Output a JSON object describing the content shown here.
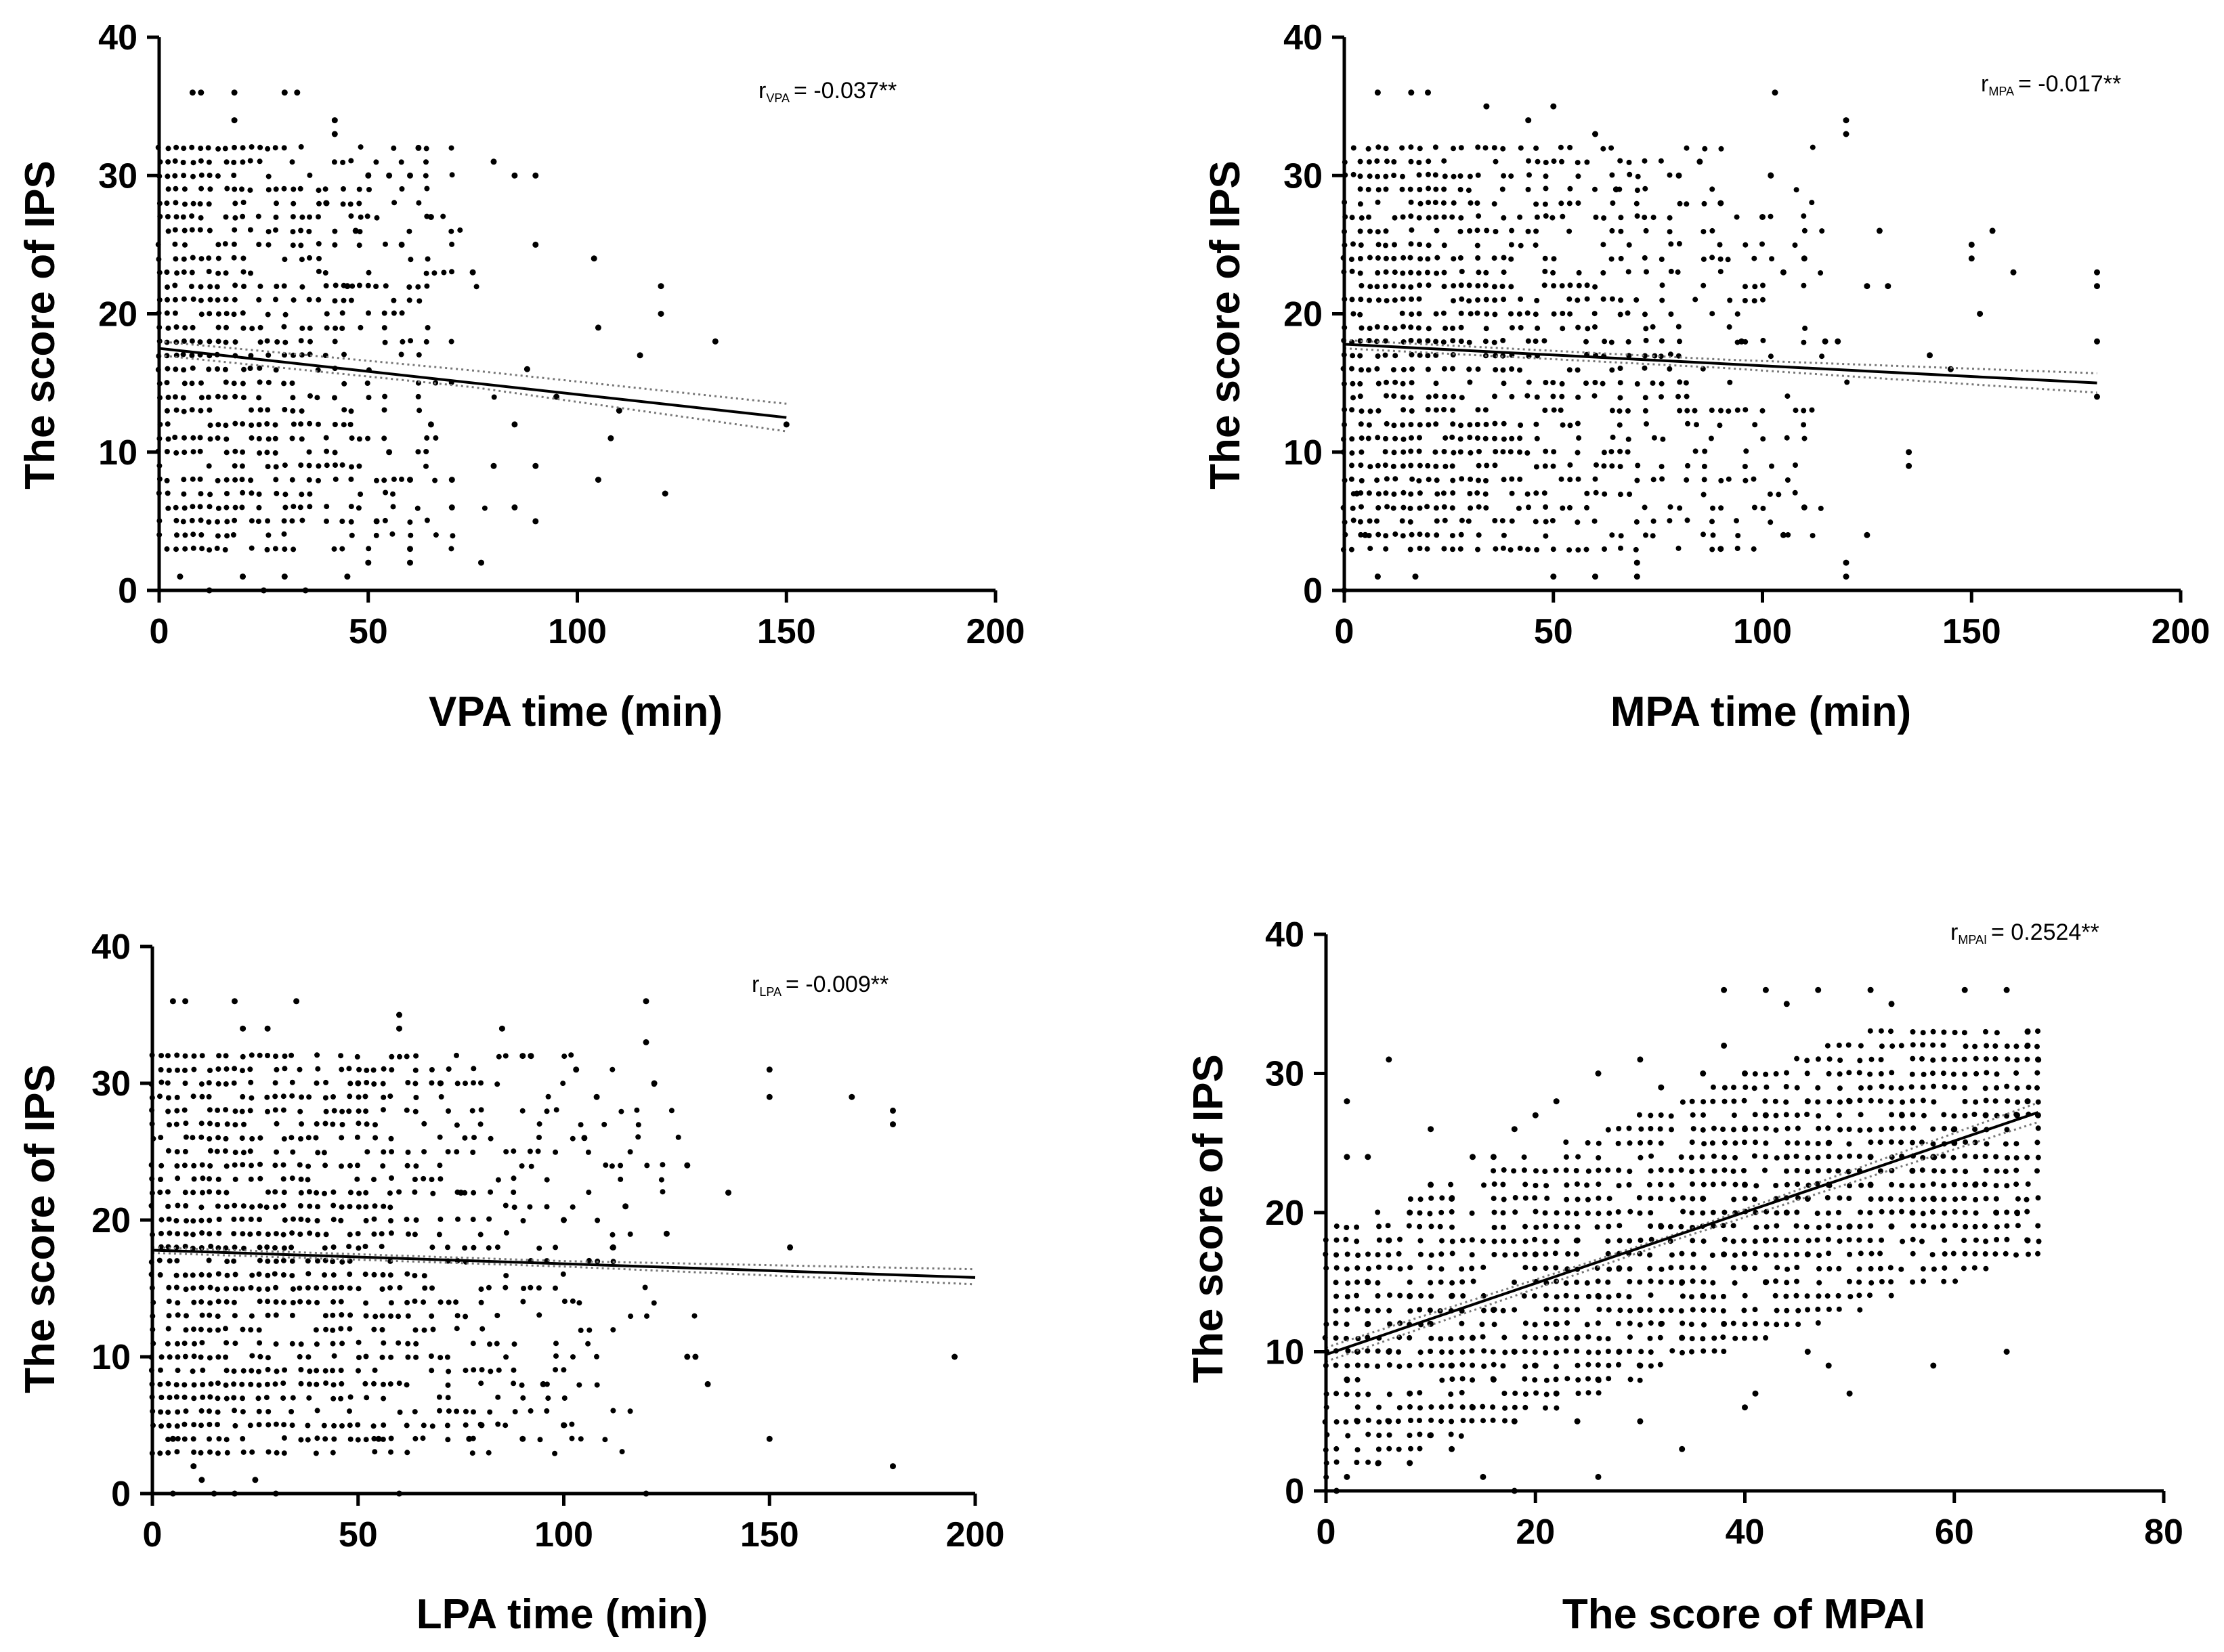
{
  "figure": {
    "colors": {
      "points": "#000000",
      "fit_line": "#000000",
      "ci_band": "#777777",
      "background": "#ffffff"
    }
  },
  "chart_data": [
    {
      "type": "scatter",
      "panel": "top-left",
      "xlabel": "VPA time (min)",
      "ylabel": "The score of IPS",
      "xlim": [
        0,
        200
      ],
      "ylim": [
        0,
        40
      ],
      "xticks": [
        "0",
        "50",
        "100",
        "150",
        "200"
      ],
      "yticks": [
        "0",
        "10",
        "20",
        "30",
        "40"
      ],
      "annotation": {
        "r_symbol": "r",
        "r_subscript": "VPA",
        "r_rest": "= -0.037**"
      },
      "fit_line": {
        "x": [
          0,
          150
        ],
        "y": [
          17.5,
          12.5
        ]
      },
      "ci_upper": {
        "x": [
          0,
          75,
          150
        ],
        "y": [
          18.0,
          15.9,
          13.5
        ]
      },
      "ci_lower": {
        "x": [
          0,
          75,
          150
        ],
        "y": [
          17.0,
          14.7,
          11.5
        ]
      },
      "points": [
        [
          8,
          36
        ],
        [
          10,
          36
        ],
        [
          18,
          36
        ],
        [
          18,
          34
        ],
        [
          30,
          36
        ],
        [
          33,
          36
        ],
        [
          42,
          34
        ],
        [
          42,
          33
        ],
        [
          62,
          32
        ],
        [
          75,
          23
        ],
        [
          80,
          31
        ],
        [
          85,
          30
        ],
        [
          90,
          30
        ],
        [
          90,
          25
        ],
        [
          104,
          24
        ],
        [
          105,
          19
        ],
        [
          105,
          8
        ],
        [
          108,
          11
        ],
        [
          110,
          13
        ],
        [
          115,
          17
        ],
        [
          120,
          22
        ],
        [
          120,
          20
        ],
        [
          121,
          7
        ],
        [
          133,
          18
        ],
        [
          150,
          12
        ],
        [
          5,
          1
        ],
        [
          12,
          0
        ],
        [
          20,
          1
        ],
        [
          25,
          0
        ],
        [
          30,
          1
        ],
        [
          35,
          0
        ],
        [
          45,
          1
        ],
        [
          50,
          2
        ],
        [
          52,
          5
        ],
        [
          60,
          2
        ],
        [
          60,
          3
        ],
        [
          77,
          2
        ],
        [
          85,
          6
        ],
        [
          90,
          5
        ],
        [
          60,
          8
        ],
        [
          55,
          10
        ],
        [
          65,
          12
        ],
        [
          70,
          8
        ],
        [
          70,
          6
        ],
        [
          80,
          9
        ],
        [
          85,
          12
        ],
        [
          88,
          16
        ],
        [
          90,
          9
        ],
        [
          95,
          14
        ],
        [
          58,
          25
        ],
        [
          65,
          27
        ],
        [
          40,
          28
        ],
        [
          45,
          22
        ],
        [
          50,
          30
        ],
        [
          55,
          30
        ],
        [
          47,
          26
        ],
        [
          60,
          30
        ]
      ]
    },
    {
      "type": "scatter",
      "panel": "top-right",
      "xlabel": "MPA time (min)",
      "ylabel": "The score of IPS",
      "xlim": [
        0,
        200
      ],
      "ylim": [
        0,
        40
      ],
      "xticks": [
        "0",
        "50",
        "100",
        "150",
        "200"
      ],
      "yticks": [
        "0",
        "10",
        "20",
        "30",
        "40"
      ],
      "annotation": {
        "r_symbol": "r",
        "r_subscript": "MPA",
        "r_rest": "= -0.017**"
      },
      "fit_line": {
        "x": [
          0,
          180
        ],
        "y": [
          17.8,
          15.0
        ]
      },
      "ci_upper": {
        "x": [
          0,
          90,
          180
        ],
        "y": [
          18.1,
          16.7,
          15.7
        ]
      },
      "ci_lower": {
        "x": [
          0,
          90,
          180
        ],
        "y": [
          17.5,
          16.1,
          14.3
        ]
      },
      "points": [
        [
          8,
          36
        ],
        [
          16,
          36
        ],
        [
          20,
          36
        ],
        [
          34,
          35
        ],
        [
          44,
          34
        ],
        [
          50,
          35
        ],
        [
          103,
          36
        ],
        [
          120,
          34
        ],
        [
          120,
          33
        ],
        [
          60,
          33
        ],
        [
          65,
          29
        ],
        [
          80,
          30
        ],
        [
          85,
          31
        ],
        [
          90,
          28
        ],
        [
          100,
          27
        ],
        [
          102,
          30
        ],
        [
          105,
          23
        ],
        [
          110,
          24
        ],
        [
          115,
          18
        ],
        [
          118,
          18
        ],
        [
          125,
          22
        ],
        [
          128,
          26
        ],
        [
          130,
          22
        ],
        [
          135,
          10
        ],
        [
          135,
          9
        ],
        [
          150,
          25
        ],
        [
          150,
          24
        ],
        [
          152,
          20
        ],
        [
          155,
          26
        ],
        [
          160,
          23
        ],
        [
          180,
          23
        ],
        [
          180,
          22
        ],
        [
          180,
          18
        ],
        [
          180,
          14
        ],
        [
          125,
          4
        ],
        [
          120,
          2
        ],
        [
          120,
          1
        ],
        [
          110,
          6
        ],
        [
          105,
          4
        ],
        [
          90,
          3
        ],
        [
          70,
          1
        ],
        [
          60,
          1
        ],
        [
          50,
          1
        ],
        [
          17,
          1
        ],
        [
          8,
          1
        ],
        [
          0,
          0
        ],
        [
          5,
          4
        ],
        [
          3,
          7
        ],
        [
          70,
          2
        ],
        [
          95,
          18
        ],
        [
          140,
          17
        ],
        [
          145,
          16
        ]
      ]
    },
    {
      "type": "scatter",
      "panel": "bottom-left",
      "xlabel": "LPA time (min)",
      "ylabel": "The score of IPS",
      "xlim": [
        0,
        200
      ],
      "ylim": [
        0,
        40
      ],
      "xticks": [
        "0",
        "50",
        "100",
        "150",
        "200"
      ],
      "yticks": [
        "0",
        "10",
        "20",
        "30",
        "40"
      ],
      "annotation": {
        "r_symbol": "r",
        "r_subscript": "LPA",
        "r_rest": "= -0.009**"
      },
      "fit_line": {
        "x": [
          0,
          200
        ],
        "y": [
          17.8,
          15.8
        ]
      },
      "ci_upper": {
        "x": [
          0,
          100,
          200
        ],
        "y": [
          18.0,
          17.0,
          16.4
        ]
      },
      "ci_lower": {
        "x": [
          0,
          100,
          200
        ],
        "y": [
          17.6,
          16.6,
          15.3
        ]
      },
      "points": [
        [
          5,
          36
        ],
        [
          8,
          36
        ],
        [
          20,
          36
        ],
        [
          22,
          34
        ],
        [
          28,
          34
        ],
        [
          35,
          36
        ],
        [
          50,
          30
        ],
        [
          60,
          35
        ],
        [
          60,
          34
        ],
        [
          70,
          30
        ],
        [
          75,
          22
        ],
        [
          85,
          34
        ],
        [
          90,
          32
        ],
        [
          92,
          32
        ],
        [
          100,
          20
        ],
        [
          103,
          31
        ],
        [
          105,
          26
        ],
        [
          108,
          29
        ],
        [
          112,
          18
        ],
        [
          115,
          21
        ],
        [
          120,
          36
        ],
        [
          120,
          33
        ],
        [
          122,
          30
        ],
        [
          125,
          19
        ],
        [
          130,
          24
        ],
        [
          140,
          22
        ],
        [
          150,
          31
        ],
        [
          150,
          29
        ],
        [
          150,
          4
        ],
        [
          155,
          18
        ],
        [
          170,
          29
        ],
        [
          180,
          28
        ],
        [
          180,
          27
        ],
        [
          180,
          2
        ],
        [
          195,
          10
        ],
        [
          130,
          10
        ],
        [
          132,
          10
        ],
        [
          135,
          8
        ],
        [
          100,
          5
        ],
        [
          95,
          8
        ],
        [
          90,
          4
        ],
        [
          80,
          5
        ],
        [
          77,
          4
        ],
        [
          5,
          0
        ],
        [
          10,
          2
        ],
        [
          15,
          0
        ],
        [
          20,
          0
        ],
        [
          25,
          1
        ],
        [
          30,
          0
        ],
        [
          55,
          4
        ],
        [
          60,
          0
        ],
        [
          120,
          0
        ],
        [
          5,
          4
        ],
        [
          12,
          1
        ]
      ]
    },
    {
      "type": "scatter",
      "panel": "bottom-right",
      "xlabel": "The score of MPAI",
      "ylabel": "The score of IPS",
      "xlim": [
        0,
        80
      ],
      "ylim": [
        0,
        40
      ],
      "xticks": [
        "0",
        "20",
        "40",
        "60",
        "80"
      ],
      "yticks": [
        "0",
        "10",
        "20",
        "30",
        "40"
      ],
      "annotation": {
        "r_symbol": "r",
        "r_subscript": "MPAI",
        "r_rest": "= 0.2524**"
      },
      "fit_line": {
        "x": [
          0,
          68
        ],
        "y": [
          9.8,
          27.2
        ]
      },
      "ci_upper": {
        "x": [
          0,
          34,
          68
        ],
        "y": [
          10.3,
          18.6,
          27.9
        ]
      },
      "ci_lower": {
        "x": [
          0,
          34,
          68
        ],
        "y": [
          9.3,
          18.2,
          26.5
        ]
      },
      "points": [
        [
          2,
          28
        ],
        [
          6,
          31
        ],
        [
          10,
          26
        ],
        [
          14,
          24
        ],
        [
          2,
          24
        ],
        [
          4,
          24
        ],
        [
          26,
          1
        ],
        [
          15,
          1
        ],
        [
          18,
          0
        ],
        [
          2,
          1
        ],
        [
          1,
          0
        ],
        [
          38,
          36
        ],
        [
          42,
          36
        ],
        [
          44,
          35
        ],
        [
          47,
          36
        ],
        [
          52,
          36
        ],
        [
          54,
          35
        ],
        [
          61,
          36
        ],
        [
          65,
          36
        ],
        [
          67,
          33
        ],
        [
          67,
          32
        ],
        [
          68,
          31
        ],
        [
          67,
          28
        ],
        [
          66,
          20
        ],
        [
          67,
          18
        ],
        [
          65,
          10
        ],
        [
          58,
          9
        ],
        [
          50,
          7
        ],
        [
          48,
          9
        ],
        [
          46,
          10
        ],
        [
          41,
          7
        ],
        [
          40,
          6
        ],
        [
          34,
          3
        ],
        [
          30,
          5
        ],
        [
          24,
          5
        ],
        [
          12,
          3
        ],
        [
          8,
          2
        ],
        [
          5,
          2
        ],
        [
          3,
          5
        ],
        [
          40,
          26
        ],
        [
          42,
          27
        ],
        [
          44,
          24
        ],
        [
          46,
          28
        ],
        [
          48,
          25
        ],
        [
          50,
          28
        ],
        [
          55,
          27
        ],
        [
          58,
          24
        ],
        [
          60,
          26
        ],
        [
          62,
          22
        ],
        [
          64,
          20
        ],
        [
          54,
          19
        ],
        [
          56,
          20
        ],
        [
          58,
          21
        ],
        [
          36,
          30
        ],
        [
          38,
          32
        ],
        [
          40,
          30
        ],
        [
          30,
          31
        ],
        [
          32,
          29
        ],
        [
          26,
          30
        ],
        [
          22,
          28
        ],
        [
          20,
          27
        ],
        [
          18,
          26
        ],
        [
          16,
          24
        ],
        [
          12,
          21
        ],
        [
          10,
          22
        ],
        [
          8,
          20
        ],
        [
          6,
          18
        ],
        [
          4,
          15
        ],
        [
          3,
          10
        ],
        [
          2,
          8
        ],
        [
          6,
          5
        ],
        [
          8,
          7
        ],
        [
          10,
          4
        ],
        [
          14,
          6
        ],
        [
          18,
          5
        ],
        [
          22,
          7
        ],
        [
          26,
          8
        ],
        [
          30,
          9
        ],
        [
          34,
          11
        ],
        [
          38,
          12
        ],
        [
          42,
          15
        ],
        [
          46,
          17
        ],
        [
          50,
          19
        ],
        [
          52,
          22
        ],
        [
          56,
          23
        ],
        [
          60,
          25
        ],
        [
          63,
          27
        ],
        [
          66,
          27
        ],
        [
          68,
          27
        ],
        [
          20,
          17
        ],
        [
          24,
          18
        ],
        [
          28,
          16
        ],
        [
          32,
          19
        ],
        [
          36,
          21
        ],
        [
          40,
          22
        ],
        [
          44,
          20
        ],
        [
          48,
          22
        ],
        [
          52,
          24
        ],
        [
          10,
          12
        ],
        [
          12,
          14
        ],
        [
          14,
          11
        ],
        [
          16,
          13
        ],
        [
          18,
          10
        ],
        [
          22,
          12
        ],
        [
          26,
          14
        ],
        [
          30,
          13
        ],
        [
          34,
          15
        ],
        [
          38,
          17
        ],
        [
          42,
          18
        ],
        [
          46,
          21
        ],
        [
          4,
          12
        ],
        [
          6,
          10
        ],
        [
          8,
          14
        ],
        [
          12,
          9
        ],
        [
          16,
          8
        ],
        [
          20,
          9
        ],
        [
          24,
          11
        ],
        [
          28,
          10
        ],
        [
          32,
          12
        ],
        [
          36,
          14
        ],
        [
          40,
          16
        ]
      ]
    }
  ]
}
